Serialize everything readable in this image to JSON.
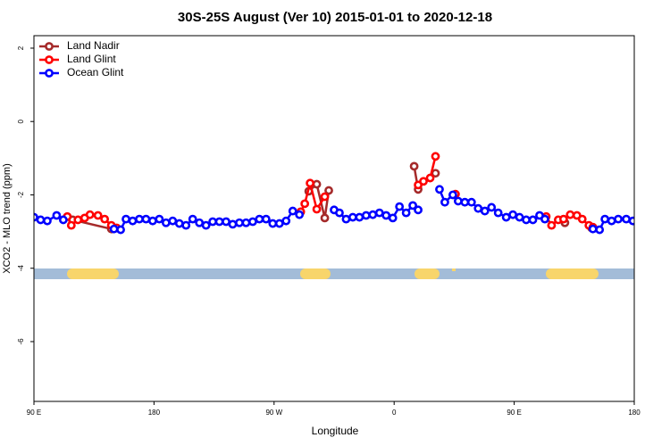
{
  "chart_data": {
    "type": "line",
    "title": "30S-25S August (Ver 10)   2015-01-01 to 2020-12-18",
    "x_label": "Longitude",
    "y_label": "XCO2 - MLO trend (ppm)",
    "xlim": [
      90,
      540
    ],
    "ylim": [
      -7.63,
      2.34
    ],
    "xticks": [
      {
        "value": 90,
        "label": "90 E"
      },
      180,
      {
        "value": 270,
        "label": "90 W"
      },
      {
        "value": 360,
        "label": "0"
      },
      {
        "value": 450,
        "label": "90 E"
      },
      {
        "value": 540,
        "label": "180"
      }
    ],
    "yticks": [
      2,
      0,
      -2,
      -4,
      -6
    ],
    "legend": "top-left",
    "series": [
      {
        "name": "Land Nadir",
        "color": "#a52a2a",
        "x": [
          119,
          148,
          null,
          296,
          302,
          308,
          311,
          null,
          375,
          378,
          null,
          391,
          null,
          488,
          null,
          508
        ],
        "values": [
          -2.68,
          -2.93,
          null,
          -1.9,
          -1.71,
          -2.63,
          -1.88,
          null,
          -1.22,
          -1.85,
          null,
          -1.41,
          null,
          -2.76,
          null,
          -2.9
        ]
      },
      {
        "name": "Land Glint",
        "color": "#ff0000",
        "x": [
          115,
          118,
          123,
          128,
          132,
          138,
          143,
          148,
          152,
          null,
          290,
          293,
          297,
          302,
          308,
          null,
          378,
          382,
          387,
          391,
          null,
          406,
          null,
          474,
          478,
          483,
          487,
          492,
          497,
          501,
          506,
          509
        ],
        "values": [
          -2.59,
          -2.83,
          -2.68,
          -2.63,
          -2.54,
          -2.56,
          -2.66,
          -2.83,
          -2.9,
          null,
          -2.46,
          -2.24,
          -1.68,
          -2.39,
          -2.05,
          null,
          -1.73,
          -1.63,
          -1.54,
          -0.95,
          null,
          -1.98,
          null,
          -2.59,
          -2.83,
          -2.68,
          -2.66,
          -2.54,
          -2.56,
          -2.66,
          -2.83,
          -2.88
        ]
      },
      {
        "name": "Ocean Glint",
        "color": "#0000ff",
        "x": [
          90,
          95,
          100,
          107,
          112,
          null,
          150,
          155,
          159,
          164,
          169,
          174,
          179,
          184,
          189,
          194,
          199,
          204,
          209,
          214,
          219,
          224,
          229,
          234,
          239,
          244,
          249,
          254,
          259,
          264,
          269,
          274,
          279,
          284,
          289,
          null,
          315,
          319,
          324,
          329,
          334,
          339,
          344,
          349,
          354,
          359,
          364,
          369,
          374,
          378,
          null,
          394,
          398,
          404,
          408,
          413,
          418,
          423,
          428,
          433,
          438,
          444,
          449,
          454,
          459,
          464,
          469,
          473,
          null,
          509,
          514,
          518,
          523,
          528,
          534,
          539
        ],
        "values": [
          -2.61,
          -2.68,
          -2.71,
          -2.56,
          -2.68,
          null,
          -2.93,
          -2.95,
          -2.66,
          -2.71,
          -2.66,
          -2.66,
          -2.71,
          -2.66,
          -2.76,
          -2.71,
          -2.78,
          -2.83,
          -2.66,
          -2.76,
          -2.83,
          -2.73,
          -2.73,
          -2.73,
          -2.8,
          -2.76,
          -2.76,
          -2.73,
          -2.66,
          -2.66,
          -2.78,
          -2.78,
          -2.71,
          -2.44,
          -2.54,
          null,
          -2.41,
          -2.49,
          -2.66,
          -2.61,
          -2.61,
          -2.56,
          -2.54,
          -2.49,
          -2.56,
          -2.63,
          -2.32,
          -2.49,
          -2.29,
          -2.41,
          null,
          -1.85,
          -2.2,
          -2.0,
          -2.17,
          -2.2,
          -2.2,
          -2.37,
          -2.44,
          -2.34,
          -2.49,
          -2.61,
          -2.54,
          -2.61,
          -2.68,
          -2.68,
          -2.56,
          -2.66,
          null,
          -2.93,
          -2.95,
          -2.66,
          -2.71,
          -2.66,
          -2.66,
          -2.71
        ]
      }
    ]
  }
}
